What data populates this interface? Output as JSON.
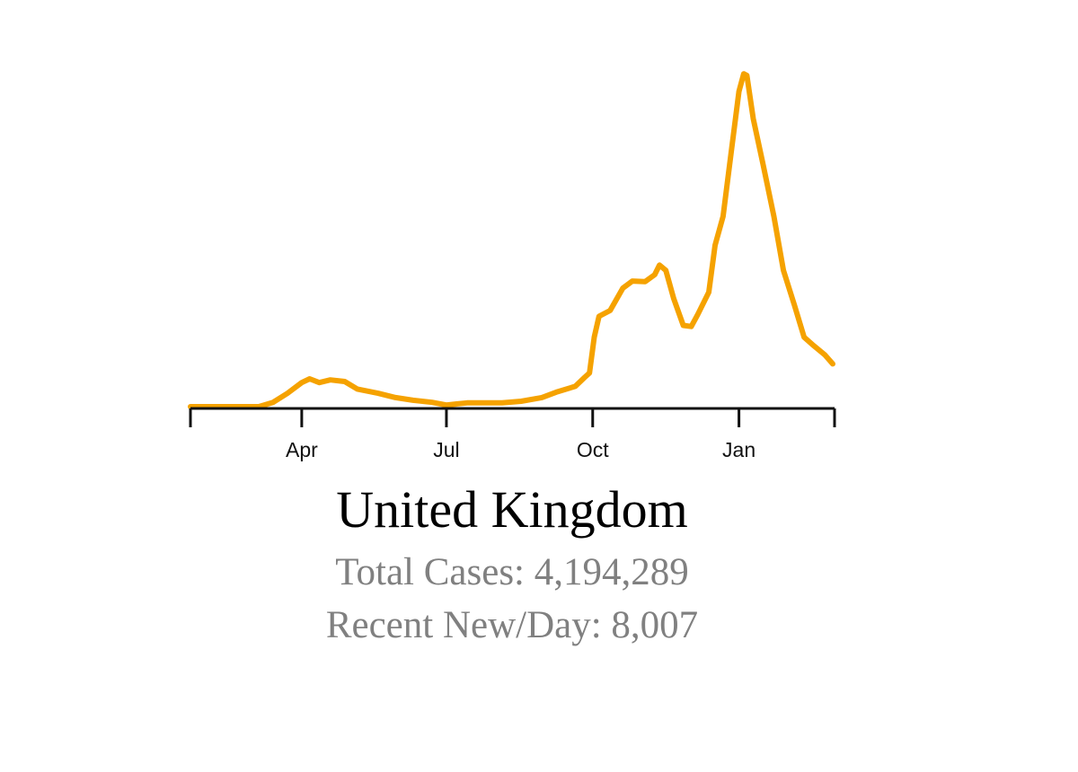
{
  "chart_data": {
    "type": "line",
    "title": "United Kingdom",
    "xlabel": "",
    "ylabel": "",
    "xlim": [
      "2020-01-22",
      "2021-03-01"
    ],
    "ylim": [
      0,
      63000
    ],
    "grid": false,
    "y_axis_shown": false,
    "color": "#F5A200",
    "tick_labels": [
      {
        "date": "2020-04-01",
        "label": "Apr"
      },
      {
        "date": "2020-07-01",
        "label": "Jul"
      },
      {
        "date": "2020-10-01",
        "label": "Oct"
      },
      {
        "date": "2021-01-01",
        "label": "Jan"
      }
    ],
    "unlabeled_ticks": [
      "2020-01-22",
      "2021-03-01"
    ],
    "series": [
      {
        "points": [
          [
            "2020-01-22",
            0
          ],
          [
            "2020-03-05",
            0
          ],
          [
            "2020-03-14",
            800
          ],
          [
            "2020-03-23",
            2500
          ],
          [
            "2020-04-01",
            4500
          ],
          [
            "2020-04-06",
            5200
          ],
          [
            "2020-04-12",
            4500
          ],
          [
            "2020-04-19",
            5000
          ],
          [
            "2020-04-28",
            4700
          ],
          [
            "2020-05-06",
            3300
          ],
          [
            "2020-05-19",
            2500
          ],
          [
            "2020-05-30",
            1700
          ],
          [
            "2020-06-10",
            1200
          ],
          [
            "2020-06-22",
            800
          ],
          [
            "2020-07-01",
            300
          ],
          [
            "2020-07-14",
            700
          ],
          [
            "2020-08-05",
            700
          ],
          [
            "2020-08-17",
            1000
          ],
          [
            "2020-08-30",
            1700
          ],
          [
            "2020-09-08",
            2700
          ],
          [
            "2020-09-20",
            3800
          ],
          [
            "2020-09-26",
            5500
          ],
          [
            "2020-09-29",
            6300
          ],
          [
            "2020-10-02",
            13000
          ],
          [
            "2020-10-05",
            16900
          ],
          [
            "2020-10-12",
            18000
          ],
          [
            "2020-10-20",
            22200
          ],
          [
            "2020-10-26",
            23500
          ],
          [
            "2020-11-03",
            23400
          ],
          [
            "2020-11-09",
            24700
          ],
          [
            "2020-11-12",
            26500
          ],
          [
            "2020-11-16",
            25500
          ],
          [
            "2020-11-21",
            20200
          ],
          [
            "2020-11-27",
            15200
          ],
          [
            "2020-12-02",
            15000
          ],
          [
            "2020-12-06",
            17200
          ],
          [
            "2020-12-13",
            21400
          ],
          [
            "2020-12-17",
            30200
          ],
          [
            "2020-12-22",
            35600
          ],
          [
            "2020-12-27",
            47300
          ],
          [
            "2021-01-01",
            59000
          ],
          [
            "2021-01-04",
            62300
          ],
          [
            "2021-01-06",
            62000
          ],
          [
            "2021-01-10",
            53900
          ],
          [
            "2021-01-16",
            45600
          ],
          [
            "2021-01-23",
            35600
          ],
          [
            "2021-01-29",
            25500
          ],
          [
            "2021-02-05",
            18900
          ],
          [
            "2021-02-11",
            13000
          ],
          [
            "2021-02-17",
            11400
          ],
          [
            "2021-02-24",
            9700
          ],
          [
            "2021-03-01",
            8000
          ]
        ]
      }
    ],
    "annotations": {
      "total_cases": "Total Cases: 4,194,289",
      "recent_new_per_day": "Recent New/Day: 8,007"
    }
  }
}
